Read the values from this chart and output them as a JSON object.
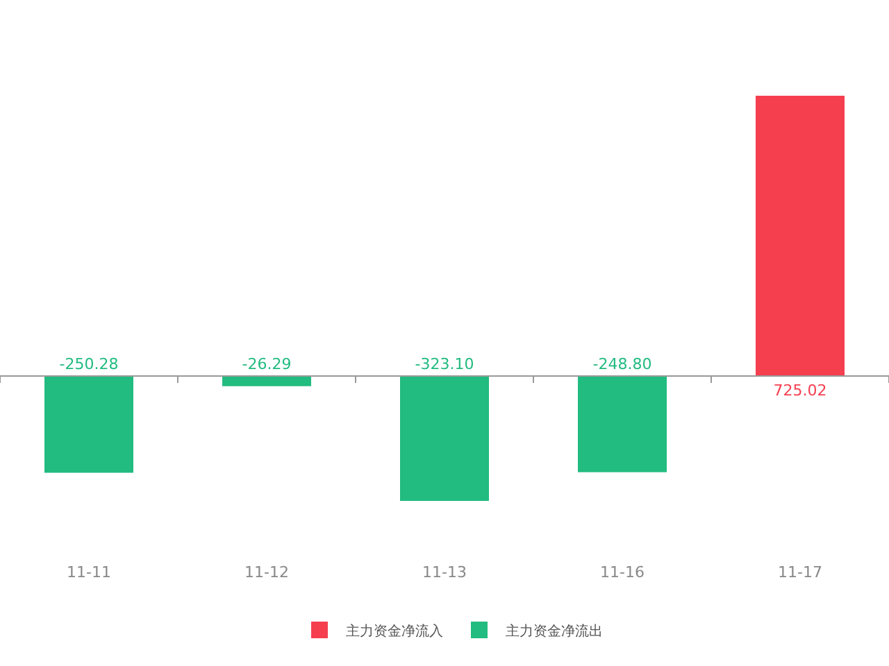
{
  "chart_data": {
    "type": "bar",
    "stacked": true,
    "categories": [
      "11-11",
      "11-12",
      "11-13",
      "11-16",
      "11-17"
    ],
    "series": [
      {
        "name": "主力资金净流入",
        "color": "#f53f4f",
        "values": [
          null,
          null,
          null,
          null,
          725.02
        ],
        "value_labels": [
          null,
          null,
          null,
          null,
          "725.02"
        ]
      },
      {
        "name": "主力资金净流出",
        "color": "#22bb80",
        "values": [
          -250.28,
          -26.29,
          -323.1,
          -248.8,
          null
        ],
        "value_labels": [
          "-250.28",
          "-26.29",
          "-323.10",
          "-248.80",
          null
        ]
      }
    ],
    "legend": "bottom"
  }
}
